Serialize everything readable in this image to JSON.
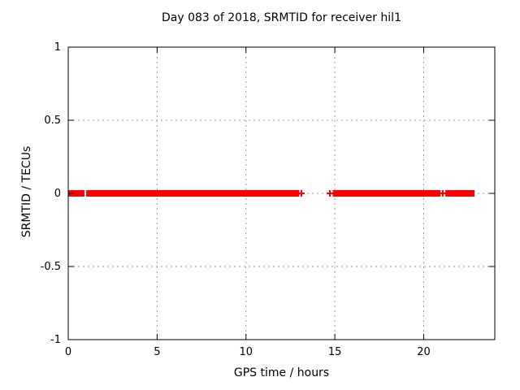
{
  "chart_data": {
    "type": "scatter",
    "title": "Day 083 of 2018, SRMTID for receiver hil1",
    "xlabel": "GPS time / hours",
    "ylabel": "SRMTID / TECUs",
    "xlim": [
      0,
      24
    ],
    "ylim": [
      -1,
      1
    ],
    "xticks": [
      0,
      5,
      10,
      15,
      20
    ],
    "yticks": [
      -1,
      -0.5,
      0,
      0.5,
      1
    ],
    "grid": true,
    "legend_position": "none",
    "marker": "plus",
    "series": [
      {
        "name": "SRMTID",
        "color": "#ff0000",
        "y_value": 0,
        "segments_hours": [
          [
            0.0,
            0.91
          ],
          [
            1.01,
            13.0
          ],
          [
            14.88,
            20.95
          ],
          [
            21.22,
            22.86
          ]
        ],
        "isolated_points_hours": [
          13.12,
          14.72,
          21.07
        ]
      }
    ]
  },
  "colors": {
    "background": "#ffffff",
    "border": "#000000",
    "grid": "#9a9a9a",
    "series": "#ff0000",
    "text": "#000000"
  }
}
